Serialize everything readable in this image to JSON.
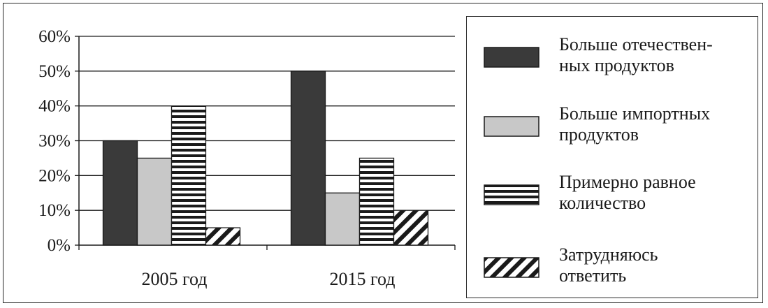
{
  "chart_data": {
    "type": "bar",
    "categories": [
      "2005 год",
      "2015 год"
    ],
    "series": [
      {
        "name": "Больше отечествен-ных продуктов",
        "legend_lines": [
          "Больше отечествен-",
          "ных продуктов"
        ],
        "values": [
          30,
          50
        ],
        "pattern": "solid-dark"
      },
      {
        "name": "Больше импортных продуктов",
        "legend_lines": [
          "Больше импортных",
          "продуктов"
        ],
        "values": [
          25,
          15
        ],
        "pattern": "solid-light"
      },
      {
        "name": "Примерно равное количество",
        "legend_lines": [
          "Примерно равное",
          "количество"
        ],
        "values": [
          40,
          25
        ],
        "pattern": "horizontal-stripes"
      },
      {
        "name": "Затрудняюсь ответить",
        "legend_lines": [
          "Затрудняюсь",
          "ответить"
        ],
        "values": [
          5,
          10
        ],
        "pattern": "diagonal-stripes"
      }
    ],
    "y_ticks": [
      "0%",
      "10%",
      "20%",
      "30%",
      "40%",
      "50%",
      "60%"
    ],
    "ylim": [
      0,
      60
    ],
    "grid": true,
    "legend_position": "right",
    "colors": {
      "dark": "#3a3a3a",
      "light": "#c8c8c8",
      "stroke": "#1a1a1a"
    }
  }
}
